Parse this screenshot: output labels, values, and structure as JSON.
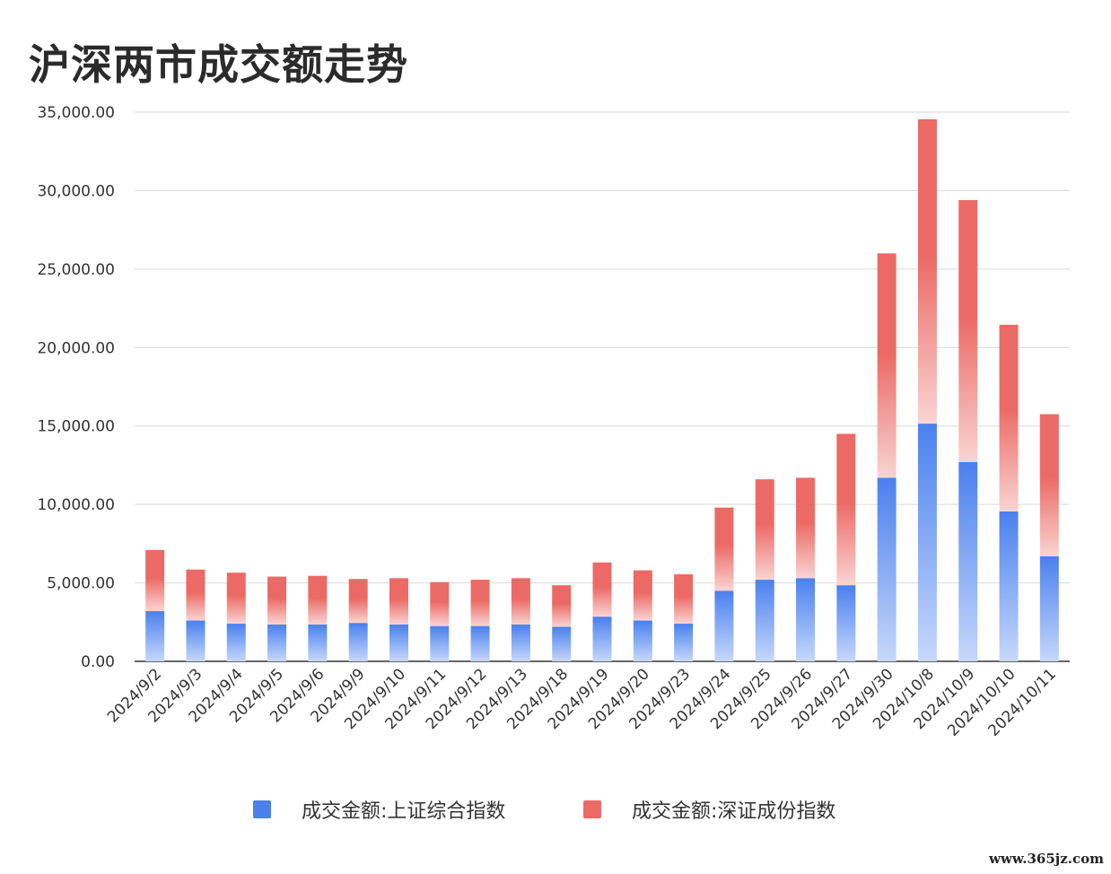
{
  "chart_data": {
    "type": "bar",
    "stacked": true,
    "title": "沪深两市成交额走势",
    "xlabel": "",
    "ylabel": "",
    "ylim": [
      0,
      35000
    ],
    "y_ticks": [
      "0.00",
      "5,000.00",
      "10,000.00",
      "15,000.00",
      "20,000.00",
      "25,000.00",
      "30,000.00",
      "35,000.00"
    ],
    "grid": true,
    "legend_position": "bottom",
    "categories": [
      "2024/9/2",
      "2024/9/3",
      "2024/9/4",
      "2024/9/5",
      "2024/9/6",
      "2024/9/9",
      "2024/9/10",
      "2024/9/11",
      "2024/9/12",
      "2024/9/13",
      "2024/9/18",
      "2024/9/19",
      "2024/9/20",
      "2024/9/23",
      "2024/9/24",
      "2024/9/25",
      "2024/9/26",
      "2024/9/27",
      "2024/9/30",
      "2024/10/8",
      "2024/10/9",
      "2024/10/10",
      "2024/10/11"
    ],
    "series": [
      {
        "name": "成交金额:上证综合指数",
        "color": "#4a80ee",
        "values": [
          3200,
          2600,
          2400,
          2350,
          2350,
          2450,
          2350,
          2250,
          2250,
          2350,
          2200,
          2850,
          2600,
          2400,
          4500,
          5200,
          5300,
          4850,
          11700,
          15150,
          12700,
          9550,
          6700
        ]
      },
      {
        "name": "成交金额:深证成份指数",
        "color": "#ec6a65",
        "values": [
          3900,
          3250,
          3250,
          3050,
          3100,
          2800,
          2950,
          2800,
          2950,
          2950,
          2650,
          3450,
          3200,
          3150,
          5300,
          6400,
          6400,
          9650,
          14300,
          19400,
          16700,
          11900,
          9050
        ]
      }
    ]
  },
  "watermark": "www.365jz.com"
}
